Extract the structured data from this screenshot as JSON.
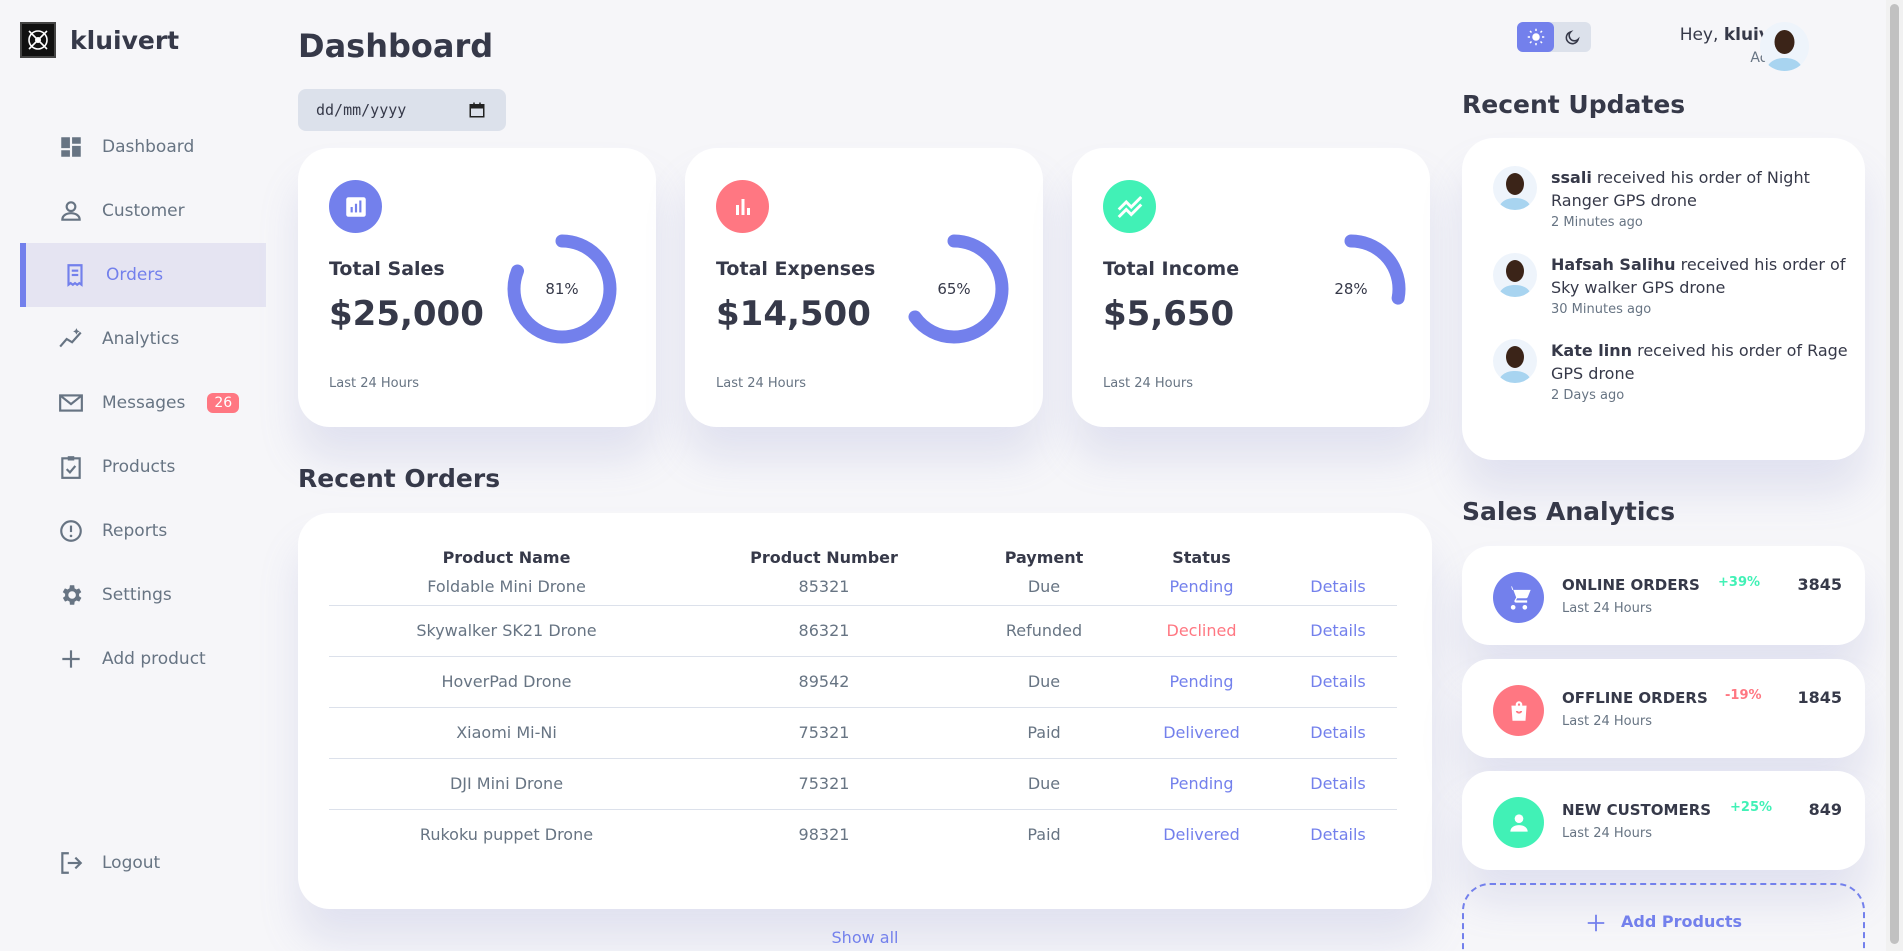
{
  "brand": {
    "name": "kluivert"
  },
  "sidebar": {
    "items": [
      {
        "label": "Dashboard",
        "icon": "grid-icon"
      },
      {
        "label": "Customer",
        "icon": "person-icon"
      },
      {
        "label": "Orders",
        "icon": "receipt-icon"
      },
      {
        "label": "Analytics",
        "icon": "insights-icon"
      },
      {
        "label": "Messages",
        "icon": "mail-icon",
        "badge": "26"
      },
      {
        "label": "Products",
        "icon": "inventory-icon"
      },
      {
        "label": "Reports",
        "icon": "report-icon"
      },
      {
        "label": "Settings",
        "icon": "gear-icon"
      },
      {
        "label": "Add product",
        "icon": "plus-icon"
      }
    ],
    "active": "Orders",
    "logout_label": "Logout"
  },
  "header": {
    "title": "Dashboard",
    "date_placeholder": "dd/mm/yyyy"
  },
  "stats": [
    {
      "label": "Total Sales",
      "value": "$25,000",
      "percent": 81,
      "percent_label": "81%",
      "footer": "Last 24 Hours",
      "color": "#7380ec"
    },
    {
      "label": "Total Expenses",
      "value": "$14,500",
      "percent": 65,
      "percent_label": "65%",
      "footer": "Last 24 Hours",
      "color": "#ff7782"
    },
    {
      "label": "Total Income",
      "value": "$5,650",
      "percent": 28,
      "percent_label": "28%",
      "footer": "Last 24 Hours",
      "color": "#41f1b6"
    }
  ],
  "recent_orders": {
    "title": "Recent Orders",
    "columns": [
      "Product Name",
      "Product Number",
      "Payment",
      "Status",
      ""
    ],
    "rows": [
      {
        "name": "Foldable Mini Drone",
        "number": "85321",
        "payment": "Due",
        "status": "Pending",
        "action": "Details"
      },
      {
        "name": "Skywalker SK21 Drone",
        "number": "86321",
        "payment": "Refunded",
        "status": "Declined",
        "action": "Details"
      },
      {
        "name": "HoverPad Drone",
        "number": "89542",
        "payment": "Due",
        "status": "Pending",
        "action": "Details"
      },
      {
        "name": "Xiaomi Mi-Ni",
        "number": "75321",
        "payment": "Paid",
        "status": "Delivered",
        "action": "Details"
      },
      {
        "name": "DJI Mini Drone",
        "number": "75321",
        "payment": "Due",
        "status": "Pending",
        "action": "Details"
      },
      {
        "name": "Rukoku puppet Drone",
        "number": "98321",
        "payment": "Paid",
        "status": "Delivered",
        "action": "Details"
      }
    ],
    "show_all": "Show all"
  },
  "profile": {
    "greeting": "Hey,",
    "name": "kluivert",
    "role": "Admin"
  },
  "recent_updates": {
    "title": "Recent Updates",
    "items": [
      {
        "name": "ssali",
        "text": " received his order of Night Ranger GPS drone",
        "time": "2 Minutes ago"
      },
      {
        "name": "Hafsah Salihu",
        "text": " received his order of Sky walker GPS drone",
        "time": "30 Minutes ago"
      },
      {
        "name": "Kate linn",
        "text": " received his order of Rage GPS drone",
        "time": "2 Days ago"
      }
    ]
  },
  "sales_analytics": {
    "title": "Sales Analytics",
    "items": [
      {
        "title": "ONLINE ORDERS",
        "sub": "Last 24 Hours",
        "pct": "+39%",
        "value": "3845",
        "icon": "cart-icon",
        "color": "#7380ec",
        "pct_color": "#41f1b6"
      },
      {
        "title": "OFFLINE ORDERS",
        "sub": "Last 24 Hours",
        "pct": "-19%",
        "value": "1845",
        "icon": "bag-icon",
        "color": "#ff7782",
        "pct_color": "#ff7782"
      },
      {
        "title": "NEW CUSTOMERS",
        "sub": "Last 24 Hours",
        "pct": "+25%",
        "value": "849",
        "icon": "person-icon",
        "color": "#41f1b6",
        "pct_color": "#41f1b6"
      }
    ],
    "add_label": "Add Products"
  },
  "colors": {
    "primary": "#7380ec",
    "danger": "#ff7782",
    "success": "#41f1b6",
    "background": "#f6f6f9"
  }
}
